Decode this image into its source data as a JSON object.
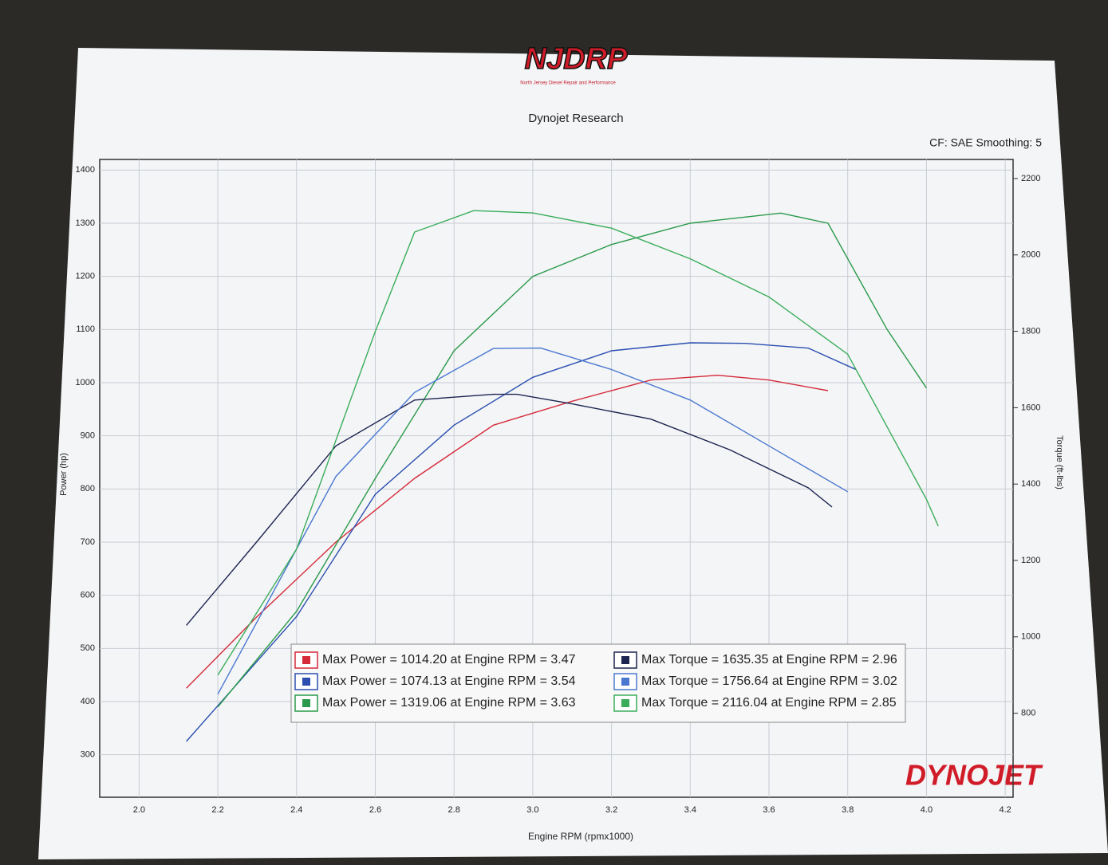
{
  "header": {
    "logo": "NJDRP",
    "logo_subtitle": "North Jersey Diesel Repair and Performance",
    "brand": "DYNOJET"
  },
  "chart_data": {
    "type": "line",
    "title": "Dynojet Research",
    "subtitle": "CF: SAE Smoothing: 5",
    "xlabel": "Engine RPM (rpmx1000)",
    "ylabel": "Power (hp)",
    "y2label": "Torque (ft-lbs)",
    "xlim": [
      1.9,
      4.22
    ],
    "ylim": [
      220,
      1420
    ],
    "y2lim": [
      580,
      2250
    ],
    "xticks": [
      {
        "value": 2,
        "label": "2.0"
      },
      2.2,
      2.4,
      2.6,
      2.8,
      {
        "value": 3,
        "label": "3.0"
      },
      3.2,
      3.4,
      3.6,
      3.8,
      {
        "value": 4,
        "label": "4.0"
      },
      4.2
    ],
    "yticks": [
      300,
      400,
      500,
      600,
      700,
      800,
      900,
      1000,
      1100,
      1200,
      1300,
      1400
    ],
    "y2ticks": [
      800,
      1000,
      1200,
      1400,
      1600,
      1800,
      2000,
      2200
    ],
    "grid": true,
    "series": [
      {
        "name": "Max Power = 1014.20 at Engine RPM = 3.47",
        "color": "#d42a3a",
        "x": [
          2.12,
          2.3,
          2.5,
          2.7,
          2.9,
          3.1,
          3.3,
          3.47,
          3.6,
          3.75
        ],
        "values": [
          425,
          560,
          700,
          820,
          920,
          965,
          1005,
          1014,
          1005,
          985
        ]
      },
      {
        "name": "Max Power = 1074.13 at Engine RPM = 3.54",
        "color": "#2b4fb0",
        "x": [
          2.12,
          2.4,
          2.6,
          2.8,
          3.0,
          3.2,
          3.4,
          3.54,
          3.7,
          3.82
        ],
        "values": [
          325,
          560,
          790,
          920,
          1010,
          1060,
          1075,
          1074,
          1065,
          1025
        ]
      },
      {
        "name": "Max Power = 1319.06 at Engine RPM = 3.63",
        "color": "#2a9a4a",
        "x": [
          2.2,
          2.4,
          2.6,
          2.8,
          3.0,
          3.2,
          3.4,
          3.63,
          3.75,
          3.9,
          4.0
        ],
        "values": [
          390,
          570,
          820,
          1060,
          1200,
          1260,
          1300,
          1319,
          1300,
          1100,
          990
        ]
      },
      {
        "name": "Max Torque = 1635.35 at Engine RPM = 2.96",
        "color": "#1c2450",
        "axis": "y2",
        "x": [
          2.12,
          2.3,
          2.5,
          2.7,
          2.9,
          2.96,
          3.1,
          3.3,
          3.5,
          3.7,
          3.76
        ],
        "values": [
          1030,
          1250,
          1500,
          1620,
          1635,
          1635,
          1610,
          1570,
          1490,
          1390,
          1340
        ]
      },
      {
        "name": "Max Torque = 1756.64 at Engine RPM = 3.02",
        "color": "#4a78d0",
        "axis": "y2",
        "x": [
          2.2,
          2.5,
          2.7,
          2.9,
          3.02,
          3.2,
          3.4,
          3.6,
          3.8
        ],
        "values": [
          850,
          1420,
          1640,
          1755,
          1756,
          1700,
          1620,
          1500,
          1380
        ]
      },
      {
        "name": "Max Torque = 2116.04 at Engine RPM = 2.85",
        "color": "#3aad5a",
        "axis": "y2",
        "x": [
          2.2,
          2.4,
          2.6,
          2.7,
          2.85,
          3.0,
          3.2,
          3.4,
          3.6,
          3.8,
          4.0,
          4.03
        ],
        "values": [
          900,
          1230,
          1800,
          2060,
          2116,
          2110,
          2070,
          1990,
          1890,
          1740,
          1360,
          1290
        ]
      }
    ]
  }
}
